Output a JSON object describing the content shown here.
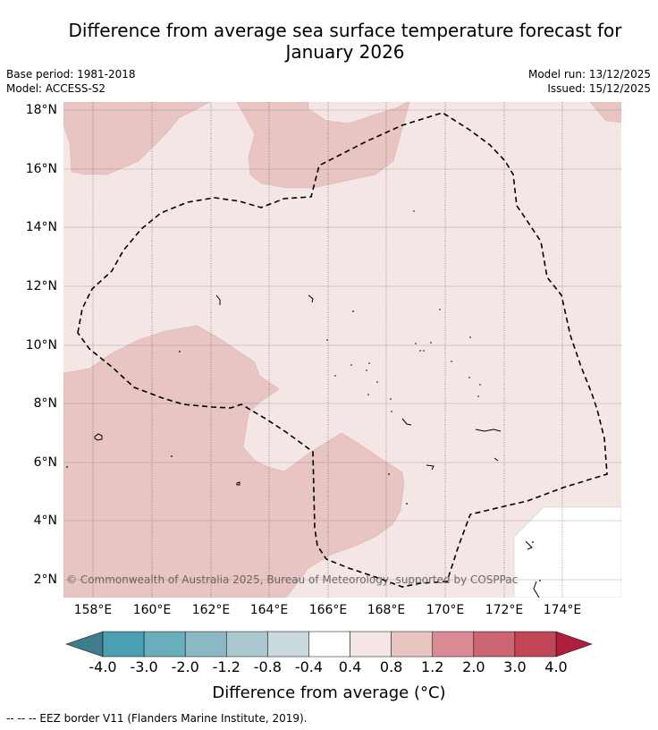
{
  "title": "Difference from average sea surface temperature forecast for January 2026",
  "title_line1": "Difference from average sea surface temperature forecast for",
  "title_line2": "January 2026",
  "info": {
    "base_period": "Base period: 1981-2018",
    "model": "Model: ACCESS-S2",
    "model_run": "Model run: 13/12/2025",
    "issued": "Issued: 15/12/2025"
  },
  "map": {
    "lat_labels": [
      "18°N",
      "16°N",
      "14°N",
      "12°N",
      "10°N",
      "8°N",
      "6°N",
      "4°N",
      "2°N"
    ],
    "lon_labels": [
      "158°E",
      "160°E",
      "162°E",
      "164°E",
      "166°E",
      "168°E",
      "170°E",
      "172°E",
      "174°E"
    ],
    "copyright": "© Commonwealth of Australia 2025, Bureau of Meteorology, supported by COSPPac"
  },
  "colorbar": {
    "labels": [
      "-4.0",
      "-3.0",
      "-2.0",
      "-1.2",
      "-0.8",
      "-0.4",
      "0.4",
      "0.8",
      "1.2",
      "2.0",
      "3.0",
      "4.0"
    ],
    "colors": [
      "#4a9fb2",
      "#6aadbd",
      "#8bb8c4",
      "#a9c7cc",
      "#ccd9dc",
      "#ffffff",
      "#f5e6e6",
      "#e8c4c2",
      "#d98c93",
      "#cc6673",
      "#c14758"
    ],
    "under_color": "#3e7e8c",
    "over_color": "#b01e3e",
    "title": "Difference from average (°C)"
  },
  "legend": {
    "footnote": "--  --  -- EEZ border V11 (Flanders Marine Institute, 2019)."
  }
}
